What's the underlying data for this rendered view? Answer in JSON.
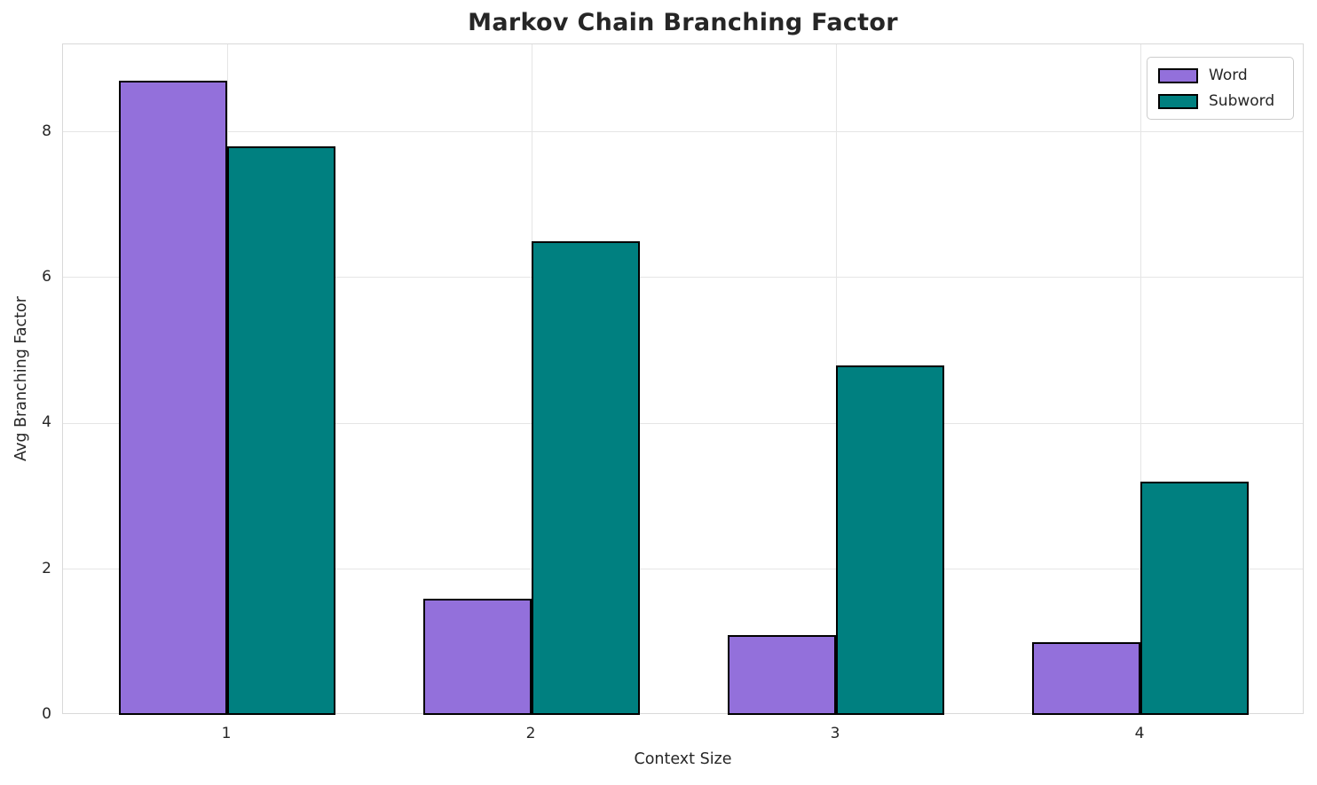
{
  "chart_data": {
    "type": "bar",
    "title": "Markov Chain Branching Factor",
    "xlabel": "Context Size",
    "ylabel": "Avg Branching Factor",
    "categories": [
      "1",
      "2",
      "3",
      "4"
    ],
    "series": [
      {
        "name": "Word",
        "color": "#9370DB",
        "values": [
          8.7,
          1.6,
          1.1,
          1.0
        ]
      },
      {
        "name": "Subword",
        "color": "#008080",
        "values": [
          7.8,
          6.5,
          4.8,
          3.2
        ]
      }
    ],
    "ylim": [
      0,
      9.2
    ],
    "yticks": [
      0,
      2,
      4,
      6,
      8
    ],
    "bar_edge_color": "#000000",
    "grid": true,
    "grid_color": "#e5e5e5",
    "legend_position": "upper right"
  }
}
